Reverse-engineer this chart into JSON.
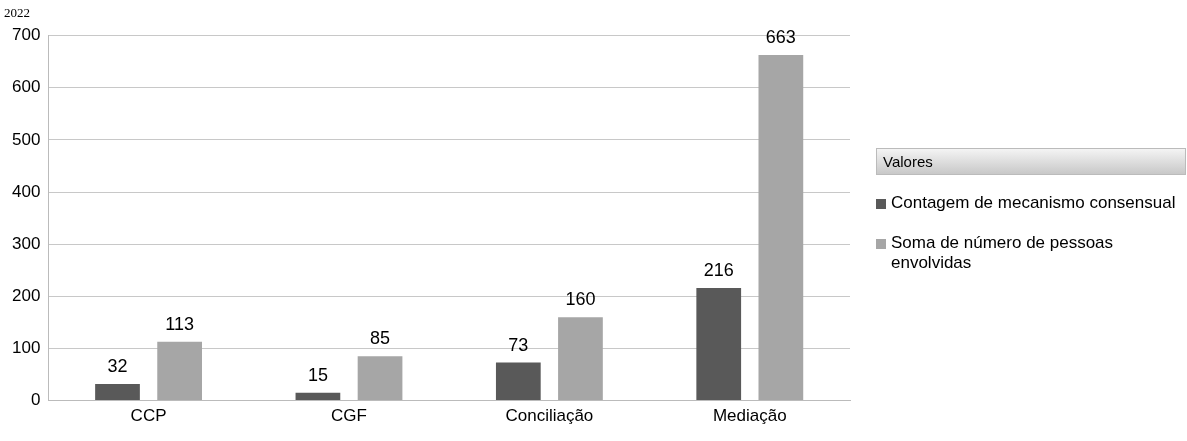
{
  "chart_data": {
    "type": "bar",
    "title": "2022",
    "legend_title": "Valores",
    "categories": [
      "CCP",
      "CGF",
      "Conciliação",
      "Mediação"
    ],
    "series": [
      {
        "name": "Contagem de mecanismo consensual",
        "color": "#595959",
        "values": [
          32,
          15,
          73,
          216
        ]
      },
      {
        "name": "Soma de número de pessoas envolvidas",
        "color": "#a6a6a6",
        "values": [
          113,
          85,
          160,
          663
        ]
      }
    ],
    "ylim": [
      0,
      700
    ],
    "yticks": [
      0,
      100,
      200,
      300,
      400,
      500,
      600,
      700
    ],
    "grid": "y",
    "legend": "right",
    "data_labels": true
  }
}
